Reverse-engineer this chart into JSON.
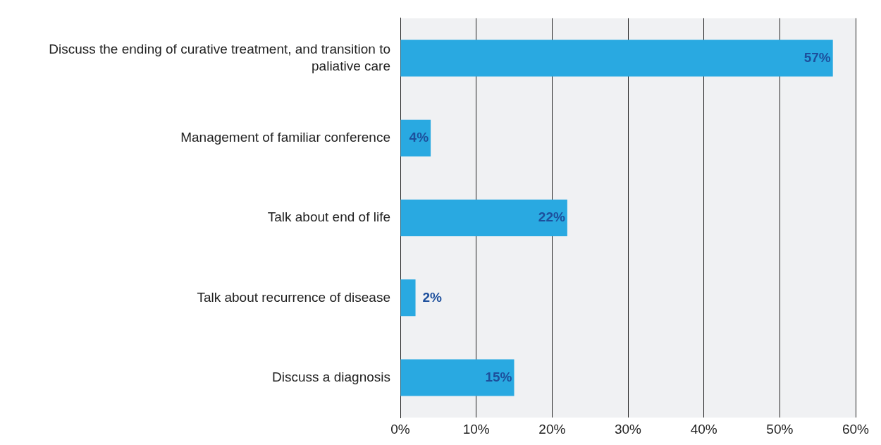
{
  "chart_data": {
    "type": "bar",
    "orientation": "horizontal",
    "categories": [
      "Discuss the ending of curative treatment, and transition to paliative care",
      "Management of familiar conference",
      "Talk about end of life",
      "Talk about recurrence of disease",
      "Discuss a diagnosis"
    ],
    "values": [
      57,
      4,
      22,
      2,
      15
    ],
    "value_labels": [
      "57%",
      "4%",
      "22%",
      "2%",
      "15%"
    ],
    "color": "#29a9e1",
    "xlim": [
      0,
      60
    ],
    "xticks": [
      {
        "value": 0,
        "label": "0%"
      },
      {
        "value": 10,
        "label": "10%"
      },
      {
        "value": 20,
        "label": "20%"
      },
      {
        "value": 30,
        "label": "30%"
      },
      {
        "value": 40,
        "label": "40%"
      },
      {
        "value": 50,
        "label": "50%"
      },
      {
        "value": 60,
        "label": "60%"
      }
    ],
    "grid": "x",
    "legend": false
  }
}
